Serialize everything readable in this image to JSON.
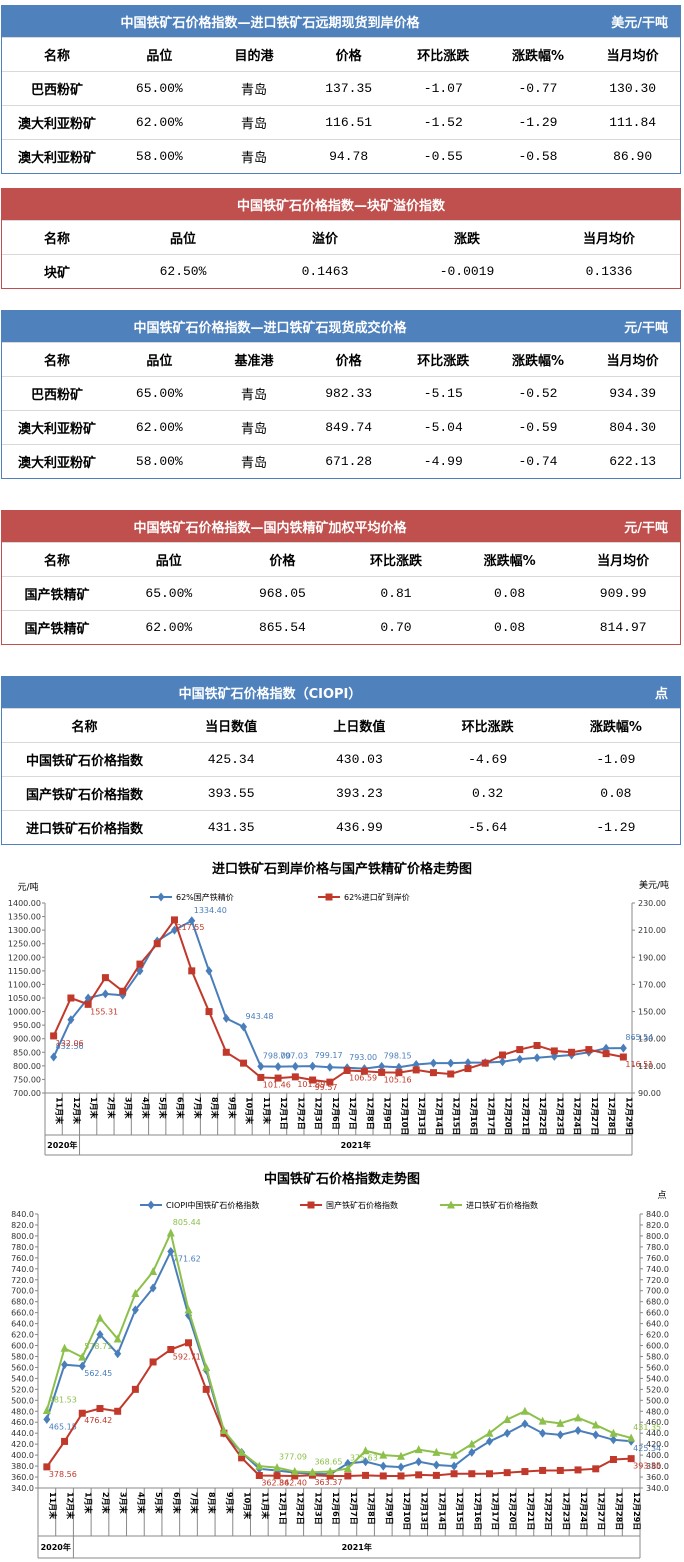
{
  "tables": [
    {
      "title": "中国铁矿石价格指数—进口铁矿石远期现货到岸价格",
      "unit": "美元/干吨",
      "color": "#4f81bd",
      "header": [
        "名称",
        "品位",
        "目的港",
        "价格",
        "环比涨跌",
        "涨跌幅%",
        "当月均价"
      ],
      "rows": [
        [
          "巴西粉矿",
          "65.00%",
          "青岛",
          "137.35",
          "-1.07",
          "-0.77",
          "130.30"
        ],
        [
          "澳大利亚粉矿",
          "62.00%",
          "青岛",
          "116.51",
          "-1.52",
          "-1.29",
          "111.84"
        ],
        [
          "澳大利亚粉矿",
          "58.00%",
          "青岛",
          "94.78",
          "-0.55",
          "-0.58",
          "86.90"
        ]
      ]
    },
    {
      "title": "中国铁矿石价格指数—块矿溢价指数",
      "color": "#c0504d",
      "header": [
        "名称",
        "品位",
        "溢价",
        "涨跌",
        "当月均价"
      ],
      "rows": [
        [
          "块矿",
          "62.50%",
          "0.1463",
          "-0.0019",
          "0.1336"
        ]
      ]
    },
    {
      "title": "中国铁矿石价格指数—进口铁矿石现货成交价格",
      "unit": "元/干吨",
      "color": "#4f81bd",
      "header": [
        "名称",
        "品位",
        "基准港",
        "价格",
        "环比涨跌",
        "涨跌幅%",
        "当月均价"
      ],
      "rows": [
        [
          "巴西粉矿",
          "65.00%",
          "青岛",
          "982.33",
          "-5.15",
          "-0.52",
          "934.39"
        ],
        [
          "澳大利亚粉矿",
          "62.00%",
          "青岛",
          "849.74",
          "-5.04",
          "-0.59",
          "804.30"
        ],
        [
          "澳大利亚粉矿",
          "58.00%",
          "青岛",
          "671.28",
          "-4.99",
          "-0.74",
          "622.13"
        ]
      ]
    },
    {
      "title": "中国铁矿石价格指数—国内铁精矿加权平均价格",
      "unit": "元/干吨",
      "color": "#c0504d",
      "header": [
        "名称",
        "品位",
        "价格",
        "环比涨跌",
        "涨跌幅%",
        "当月均价"
      ],
      "rows": [
        [
          "国产铁精矿",
          "65.00%",
          "968.05",
          "0.81",
          "0.08",
          "909.99"
        ],
        [
          "国产铁精矿",
          "62.00%",
          "865.54",
          "0.70",
          "0.08",
          "814.97"
        ]
      ]
    },
    {
      "title": "中国铁矿石价格指数（CIOPI）",
      "unit": "点",
      "color": "#4f81bd",
      "header": [
        "名称",
        "当日数值",
        "上日数值",
        "环比涨跌",
        "涨跌幅%"
      ],
      "rows": [
        [
          "中国铁矿石价格指数",
          "425.34",
          "430.03",
          "-4.69",
          "-1.09"
        ],
        [
          "国产铁矿石价格指数",
          "393.55",
          "393.23",
          "0.32",
          "0.08"
        ],
        [
          "进口铁矿石价格指数",
          "431.35",
          "436.99",
          "-5.64",
          "-1.29"
        ]
      ]
    }
  ],
  "chart_data": [
    {
      "type": "line",
      "title": "进口铁矿石到岸价格与国产铁精矿价格走势图",
      "y_label": "元/吨",
      "y2_label": "美元/吨",
      "grid": false,
      "categories": [
        "11月末",
        "12月末",
        "1月末",
        "2月末",
        "3月末",
        "4月末",
        "5月末",
        "6月末",
        "7月末",
        "8月末",
        "9月末",
        "10月末",
        "11月末",
        "12月1日",
        "12月2日",
        "12月3日",
        "12月6日",
        "12月7日",
        "12月8日",
        "12月9日",
        "12月10日",
        "12月13日",
        "12月14日",
        "12月15日",
        "12月16日",
        "12月17日",
        "12月20日",
        "12月21日",
        "12月22日",
        "12月23日",
        "12月24日",
        "12月27日",
        "12月28日",
        "12月29日"
      ],
      "year_labels": [
        "2020年",
        "2021年"
      ],
      "ylim": [
        700,
        1400
      ],
      "yticks": [
        {
          "value": 700,
          "label": "700.00"
        },
        {
          "value": 750,
          "label": "750.00"
        },
        {
          "value": 800,
          "label": "800.00"
        },
        {
          "value": 850,
          "label": "850.00"
        },
        {
          "value": 900,
          "label": "900.00"
        },
        {
          "value": 950,
          "label": "950.00"
        },
        {
          "value": 1000,
          "label": "1000.00"
        },
        {
          "value": 1050,
          "label": "1050.00"
        },
        {
          "value": 1100,
          "label": "1100.00"
        },
        {
          "value": 1150,
          "label": "1150.00"
        },
        {
          "value": 1200,
          "label": "1200.00"
        },
        {
          "value": 1250,
          "label": "1250.00"
        },
        {
          "value": 1300,
          "label": "1300.00"
        },
        {
          "value": 1350,
          "label": "1350.00"
        },
        {
          "value": 1400,
          "label": "1400.00"
        }
      ],
      "y2lim": [
        90,
        230
      ],
      "y2ticks": [
        {
          "value": 90,
          "label": "90.00"
        },
        {
          "value": 110,
          "label": "110.00"
        },
        {
          "value": 130,
          "label": "130.00"
        },
        {
          "value": 150,
          "label": "150.00"
        },
        {
          "value": 170,
          "label": "170.00"
        },
        {
          "value": 190,
          "label": "190.00"
        },
        {
          "value": 210,
          "label": "210.00"
        },
        {
          "value": 230,
          "label": "230.00"
        }
      ],
      "series": [
        {
          "name": "62%国产铁精价",
          "color": "#4a7ebb",
          "marker": "diamond",
          "values": [
            832.56,
            970,
            1050,
            1065,
            1060,
            1150,
            1260,
            1300,
            1334.4,
            1150,
            975,
            943.48,
            798,
            797.03,
            798,
            799.17,
            795,
            793,
            790,
            798.15,
            795,
            805,
            810,
            810,
            812,
            812,
            815,
            825,
            830,
            835,
            840,
            850,
            865,
            865.54
          ],
          "value_labels": [
            "832.56",
            null,
            null,
            null,
            null,
            null,
            null,
            null,
            "1334.40",
            null,
            null,
            "943.48",
            "798.00",
            "797.03",
            null,
            "799.17",
            null,
            "793.00",
            null,
            "798.15",
            null,
            null,
            null,
            null,
            null,
            null,
            null,
            null,
            null,
            null,
            null,
            null,
            null,
            "865.54"
          ]
        },
        {
          "name": "62%进口矿到岸价",
          "color": "#c0392b",
          "marker": "square",
          "axis": "y2",
          "values": [
            132.06,
            160,
            155.31,
            175,
            165,
            185,
            200,
            217.55,
            180,
            150,
            120,
            112,
            101.46,
            101,
            101.89,
            99.57,
            98,
            106.59,
            106,
            105.16,
            105,
            107,
            105,
            104,
            108,
            112,
            118,
            122,
            125,
            121,
            120,
            122,
            119,
            116.51
          ],
          "value_labels": [
            "132.06",
            null,
            "155.31",
            null,
            null,
            null,
            null,
            "217.55",
            null,
            null,
            null,
            null,
            "101.46",
            null,
            "101.89",
            "99.57",
            null,
            "106.59",
            null,
            "105.16",
            null,
            null,
            null,
            null,
            null,
            null,
            null,
            null,
            null,
            null,
            null,
            null,
            null,
            "116.51"
          ]
        }
      ]
    },
    {
      "type": "line",
      "title": "中国铁矿石价格指数走势图",
      "y2_label": "点",
      "grid": false,
      "categories": [
        "11月末",
        "12月末",
        "1月末",
        "2月末",
        "3月末",
        "4月末",
        "5月末",
        "6月末",
        "7月末",
        "8月末",
        "9月末",
        "10月末",
        "11月末",
        "12月1日",
        "12月2日",
        "12月3日",
        "12月6日",
        "12月7日",
        "12月8日",
        "12月9日",
        "12月10日",
        "12月13日",
        "12月14日",
        "12月15日",
        "12月16日",
        "12月17日",
        "12月20日",
        "12月21日",
        "12月22日",
        "12月23日",
        "12月24日",
        "12月27日",
        "12月28日",
        "12月29日"
      ],
      "year_labels": [
        "2020年",
        "2021年"
      ],
      "ylim": [
        340,
        840
      ],
      "yticks": [
        {
          "value": 340,
          "label": "340.0"
        },
        {
          "value": 360,
          "label": "360.0"
        },
        {
          "value": 380,
          "label": "380.0"
        },
        {
          "value": 400,
          "label": "400.0"
        },
        {
          "value": 420,
          "label": "420.0"
        },
        {
          "value": 440,
          "label": "440.0"
        },
        {
          "value": 460,
          "label": "460.0"
        },
        {
          "value": 480,
          "label": "480.0"
        },
        {
          "value": 500,
          "label": "500.0"
        },
        {
          "value": 520,
          "label": "520.0"
        },
        {
          "value": 540,
          "label": "540.0"
        },
        {
          "value": 560,
          "label": "560.0"
        },
        {
          "value": 580,
          "label": "580.0"
        },
        {
          "value": 600,
          "label": "600.0"
        },
        {
          "value": 620,
          "label": "620.0"
        },
        {
          "value": 640,
          "label": "640.0"
        },
        {
          "value": 660,
          "label": "660.0"
        },
        {
          "value": 680,
          "label": "680.0"
        },
        {
          "value": 700,
          "label": "700.0"
        },
        {
          "value": 720,
          "label": "720.0"
        },
        {
          "value": 740,
          "label": "740.0"
        },
        {
          "value": 760,
          "label": "760.0"
        },
        {
          "value": 780,
          "label": "780.0"
        },
        {
          "value": 800,
          "label": "800.0"
        },
        {
          "value": 820,
          "label": "820.0"
        },
        {
          "value": 840,
          "label": "840.0"
        }
      ],
      "series": [
        {
          "name": "CIOPI中国铁矿石价格指数",
          "color": "#4a7ebb",
          "marker": "diamond",
          "values": [
            465.15,
            565,
            562.45,
            620,
            585,
            665,
            705,
            771.62,
            655,
            555,
            440,
            405,
            375,
            372,
            368,
            366,
            365,
            385,
            388,
            380,
            378,
            388,
            382,
            380,
            405,
            425,
            440,
            457,
            440,
            437,
            445,
            437,
            428,
            425.34
          ],
          "value_labels": [
            "465.15",
            null,
            "562.45",
            null,
            null,
            null,
            null,
            "771.62",
            null,
            null,
            null,
            null,
            null,
            null,
            null,
            null,
            null,
            null,
            null,
            null,
            null,
            null,
            null,
            null,
            null,
            null,
            null,
            null,
            null,
            null,
            null,
            null,
            null,
            "425.34"
          ]
        },
        {
          "name": "国产铁矿石价格指数",
          "color": "#c0392b",
          "marker": "square",
          "values": [
            378.56,
            425,
            476.42,
            485,
            480,
            520,
            570,
            592.71,
            605,
            520,
            440,
            395,
            362.84,
            362.4,
            362,
            363.37,
            362,
            362,
            363,
            362,
            362,
            364,
            363,
            366,
            366,
            366,
            368,
            370,
            372,
            372,
            373,
            375,
            392,
            393.55
          ],
          "value_labels": [
            "378.56",
            null,
            "476.42",
            null,
            null,
            null,
            null,
            "592.71",
            null,
            null,
            null,
            null,
            "362.84",
            "362.40",
            null,
            "363.37",
            null,
            null,
            null,
            null,
            null,
            null,
            null,
            null,
            null,
            null,
            null,
            null,
            null,
            null,
            null,
            null,
            null,
            "393.55"
          ]
        },
        {
          "name": "进口铁矿石价格指数",
          "color": "#8cc04b",
          "marker": "triangle",
          "values": [
            481.53,
            595,
            578.71,
            650,
            612,
            695,
            735,
            805.44,
            665,
            560,
            445,
            405,
            380,
            377.09,
            370,
            368.65,
            370,
            375.63,
            408,
            400,
            398,
            410,
            405,
            400,
            420,
            440,
            465,
            480,
            462,
            458,
            468,
            455,
            440,
            431.35
          ],
          "value_labels": [
            "481.53",
            null,
            "578.71",
            null,
            null,
            null,
            null,
            "805.44",
            null,
            null,
            null,
            null,
            null,
            "377.09",
            null,
            "368.65",
            null,
            "375.63",
            null,
            null,
            null,
            null,
            null,
            null,
            null,
            null,
            null,
            null,
            null,
            null,
            null,
            null,
            null,
            "431.35"
          ]
        }
      ]
    }
  ]
}
